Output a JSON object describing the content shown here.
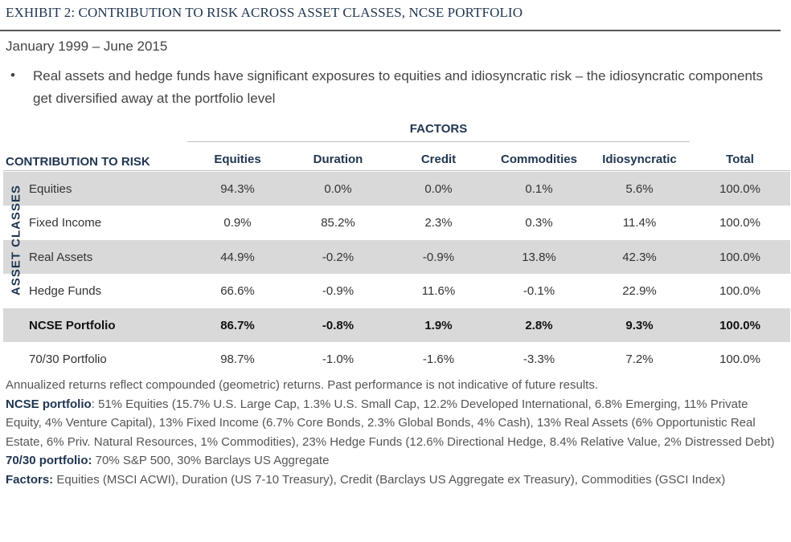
{
  "header": {
    "exhibit_title": "EXHIBIT 2: CONTRIBUTION TO RISK ACROSS ASSET CLASSES, NCSE PORTFOLIO",
    "period": "January 1999 – June 2015",
    "bullet": "Real assets and hedge funds have significant exposures to equities and idiosyncratic risk – the idiosyncratic components get diversified away at the portfolio level"
  },
  "table": {
    "factors_header": "FACTORS",
    "corner_label": "CONTRIBUTION TO RISK",
    "side_label": "ASSET CLASSES",
    "columns": [
      "Equities",
      "Duration",
      "Credit",
      "Commodities",
      "Idiosyncratic",
      "Total"
    ],
    "rows": [
      {
        "label": "Equities",
        "values": [
          "94.3%",
          "0.0%",
          "0.0%",
          "0.1%",
          "5.6%",
          "100.0%"
        ]
      },
      {
        "label": "Fixed Income",
        "values": [
          "0.9%",
          "85.2%",
          "2.3%",
          "0.3%",
          "11.4%",
          "100.0%"
        ]
      },
      {
        "label": "Real Assets",
        "values": [
          "44.9%",
          "-0.2%",
          "-0.9%",
          "13.8%",
          "42.3%",
          "100.0%"
        ]
      },
      {
        "label": "Hedge Funds",
        "values": [
          "66.6%",
          "-0.9%",
          "11.6%",
          "-0.1%",
          "22.9%",
          "100.0%"
        ]
      },
      {
        "label": "NCSE Portfolio",
        "values": [
          "86.7%",
          "-0.8%",
          "1.9%",
          "2.8%",
          "9.3%",
          "100.0%"
        ]
      },
      {
        "label": "70/30 Portfolio",
        "values": [
          "98.7%",
          "-1.0%",
          "-1.6%",
          "-3.3%",
          "7.2%",
          "100.0%"
        ]
      }
    ]
  },
  "footnotes": {
    "disclaimer": "Annualized returns reflect compounded (geometric) returns. Past performance is not indicative of future results.",
    "ncse_label": "NCSE portfolio",
    "ncse_text": ": 51% Equities (15.7% U.S. Large Cap, 1.3% U.S. Small Cap, 12.2% Developed International, 6.8% Emerging, 11% Private Equity, 4% Venture Capital), 13% Fixed Income (6.7% Core Bonds, 2.3% Global Bonds, 4% Cash), 13% Real Assets (6% Opportunistic Real Estate, 6% Priv. Natural Resources, 1% Commodities), 23% Hedge Funds (12.6% Directional Hedge, 8.4% Relative Value, 2% Distressed Debt)",
    "seventy_label": "70/30 portfolio:",
    "seventy_text": " 70% S&P 500, 30% Barclays US Aggregate",
    "factors_label": "Factors:",
    "factors_text": " Equities (MSCI ACWI), Duration (US 7-10 Treasury), Credit (Barclays US Aggregate ex Treasury), Commodities (GSCI Index)"
  }
}
